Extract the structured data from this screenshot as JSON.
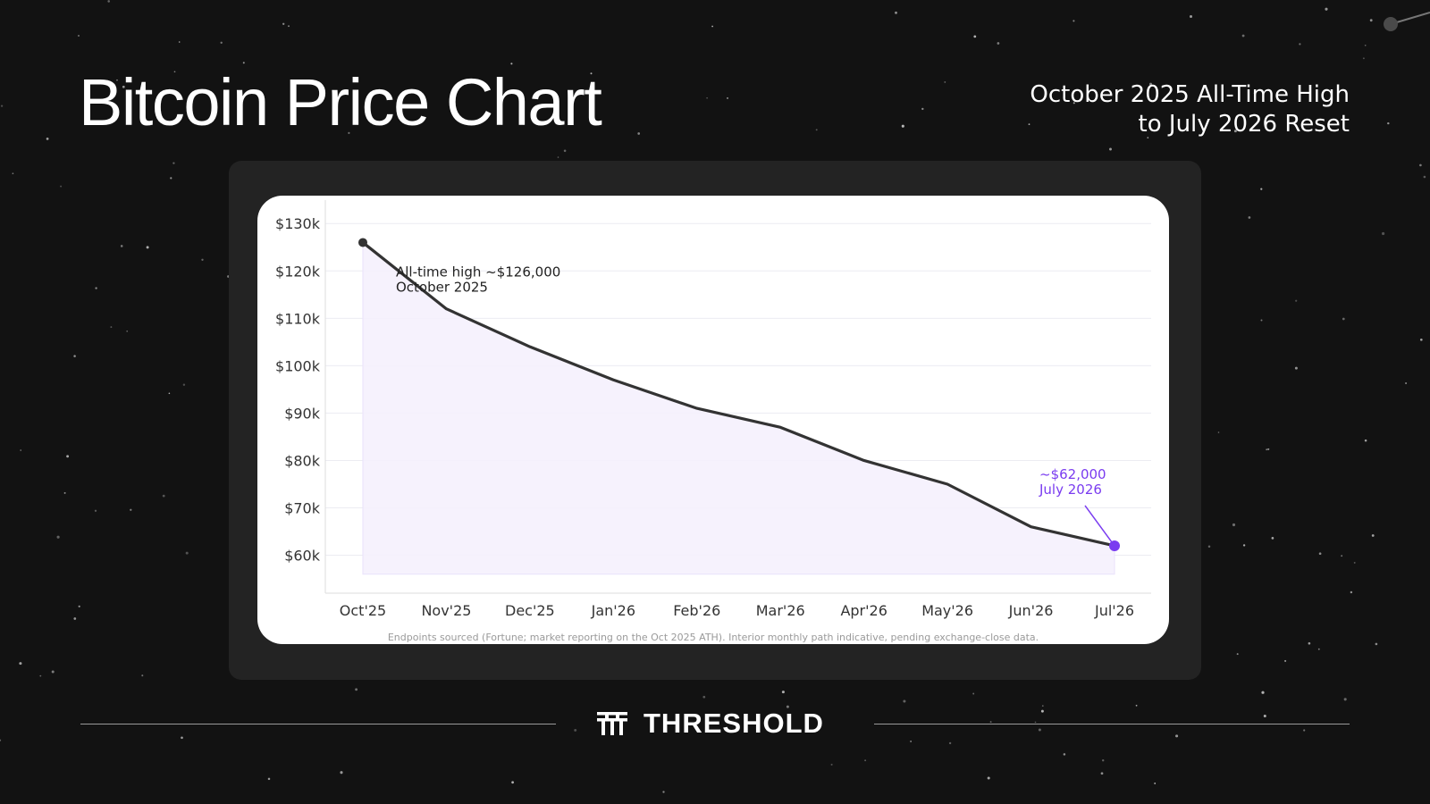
{
  "header": {
    "title": "Bitcoin Price Chart",
    "subtitle_lines": [
      "October 2025 All-Time High",
      "to July 2026 Reset"
    ]
  },
  "chart_data": {
    "type": "line",
    "categories": [
      "Oct'25",
      "Nov'25",
      "Dec'25",
      "Jan'26",
      "Feb'26",
      "Mar'26",
      "Apr'26",
      "May'26",
      "Jun'26",
      "Jul'26"
    ],
    "series": [
      {
        "values": [
          126000,
          112000,
          104000,
          97000,
          91000,
          87000,
          80000,
          75000,
          66000,
          62000
        ]
      }
    ],
    "y_ticks": [
      60000,
      70000,
      80000,
      90000,
      100000,
      110000,
      120000,
      130000
    ],
    "y_tick_labels": [
      "$60k",
      "$70k",
      "$80k",
      "$90k",
      "$100k",
      "$110k",
      "$120k",
      "$130k"
    ],
    "ylim": [
      52000,
      134000
    ],
    "fill_baseline": 56000,
    "grid": "horizontal",
    "annotations": [
      {
        "index": 0,
        "lines": [
          "All-time high ~$126,000",
          "October 2025"
        ]
      },
      {
        "index": 9,
        "lines": [
          "~$62,000",
          "July 2026"
        ]
      }
    ],
    "colors": {
      "line": "#333333",
      "fill": "#f5f1fd",
      "highlight": "#7a3cf0",
      "grid": "#ececf2"
    },
    "source_note": "Endpoints sourced (Fortune; market reporting on the Oct 2025 ATH). Interior monthly path indicative, pending exchange-close data."
  },
  "footer": {
    "brand_name": "THRESHOLD",
    "logo_icon": "threshold-logo-icon"
  }
}
